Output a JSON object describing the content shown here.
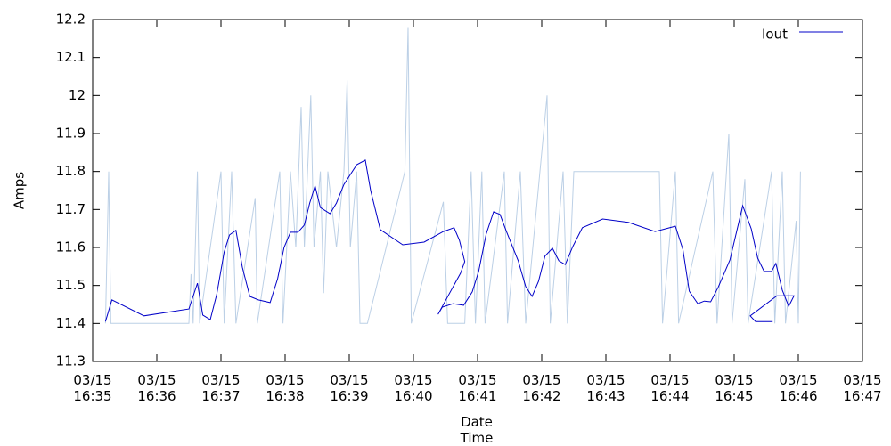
{
  "chart_data": {
    "type": "line",
    "xlabel": "Date\nTime",
    "ylabel": "Amps",
    "xlim": [
      "16:35",
      "16:47"
    ],
    "xticks": [
      {
        "value": "16:35",
        "label": "03/15\n16:35"
      },
      {
        "value": "16:36",
        "label": "03/15\n16:36"
      },
      {
        "value": "16:37",
        "label": "03/15\n16:37"
      },
      {
        "value": "16:38",
        "label": "03/15\n16:38"
      },
      {
        "value": "16:39",
        "label": "03/15\n16:39"
      },
      {
        "value": "16:40",
        "label": "03/15\n16:40"
      },
      {
        "value": "16:41",
        "label": "03/15\n16:41"
      },
      {
        "value": "16:42",
        "label": "03/15\n16:42"
      },
      {
        "value": "16:43",
        "label": "03/15\n16:43"
      },
      {
        "value": "16:44",
        "label": "03/15\n16:44"
      },
      {
        "value": "16:45",
        "label": "03/15\n16:45"
      },
      {
        "value": "16:46",
        "label": "03/15\n16:46"
      },
      {
        "value": "16:47",
        "label": "03/15\n16:47"
      }
    ],
    "ylim": [
      11.3,
      12.2
    ],
    "yticks": [
      11.3,
      11.4,
      11.5,
      11.6,
      11.7,
      11.8,
      11.9,
      12,
      12.1,
      12.2
    ],
    "grid": false,
    "legend": "top-right",
    "series": [
      {
        "color": "#bcd0e6",
        "x": [
          "16:35:12",
          "16:35:15",
          "16:35:17",
          "16:36:30",
          "16:36:32",
          "16:36:34",
          "16:36:38",
          "16:36:40",
          "16:37:00",
          "16:37:03",
          "16:37:10",
          "16:37:14",
          "16:37:32",
          "16:37:34",
          "16:37:55",
          "16:37:58",
          "16:38:05",
          "16:38:10",
          "16:38:15",
          "16:38:18",
          "16:38:24",
          "16:38:27",
          "16:38:33",
          "16:38:36",
          "16:38:40",
          "16:38:48",
          "16:38:55",
          "16:38:58",
          "16:39:01",
          "16:39:07",
          "16:39:10",
          "16:39:17",
          "16:39:52",
          "16:39:55",
          "16:39:58",
          "16:40:28",
          "16:40:32",
          "16:40:48",
          "16:40:54",
          "16:40:58",
          "16:41:04",
          "16:41:07",
          "16:41:25",
          "16:41:28",
          "16:41:40",
          "16:41:45",
          "16:42:05",
          "16:42:08",
          "16:42:20",
          "16:42:24",
          "16:42:30",
          "16:43:50",
          "16:43:53",
          "16:44:05",
          "16:44:08",
          "16:44:40",
          "16:44:44",
          "16:44:55",
          "16:44:58",
          "16:45:10",
          "16:45:13",
          "16:45:35",
          "16:45:38",
          "16:45:45",
          "16:45:48",
          "16:45:58",
          "16:46:00",
          "16:46:02"
        ],
        "values": [
          11.4,
          11.8,
          11.4,
          11.4,
          11.53,
          11.4,
          11.8,
          11.4,
          11.8,
          11.4,
          11.8,
          11.4,
          11.73,
          11.4,
          11.8,
          11.4,
          11.8,
          11.6,
          11.97,
          11.6,
          12.0,
          11.6,
          11.8,
          11.48,
          11.8,
          11.6,
          11.8,
          12.04,
          11.6,
          11.8,
          11.4,
          11.4,
          11.8,
          12.18,
          11.4,
          11.72,
          11.4,
          11.4,
          11.8,
          11.4,
          11.8,
          11.4,
          11.8,
          11.4,
          11.8,
          11.4,
          12.0,
          11.4,
          11.8,
          11.4,
          11.8,
          11.8,
          11.4,
          11.8,
          11.4,
          11.8,
          11.4,
          11.9,
          11.4,
          11.78,
          11.4,
          11.8,
          11.4,
          11.8,
          11.4,
          11.67,
          11.4,
          11.8
        ]
      },
      {
        "name": "Iout",
        "color": "#0000c8",
        "x": [
          "16:35:12",
          "16:35:18",
          "16:35:48",
          "16:36:30",
          "16:36:38",
          "16:36:43",
          "16:36:50",
          "16:36:56",
          "16:37:03",
          "16:37:08",
          "16:37:14",
          "16:37:20",
          "16:37:27",
          "16:37:35",
          "16:37:46",
          "16:37:53",
          "16:37:59",
          "16:38:05",
          "16:38:12",
          "16:38:18",
          "16:38:23",
          "16:38:28",
          "16:38:33",
          "16:38:42",
          "16:38:48",
          "16:38:55",
          "16:39:07",
          "16:39:15",
          "16:39:20",
          "16:39:29",
          "16:39:50",
          "16:40:10",
          "16:40:28",
          "16:40:38",
          "16:40:43",
          "16:40:48",
          "16:40:44",
          "16:40:23",
          "16:40:27",
          "16:40:37",
          "16:40:47",
          "16:40:55",
          "16:41:01",
          "16:41:08",
          "16:41:15",
          "16:41:21",
          "16:41:27",
          "16:41:38",
          "16:41:45",
          "16:41:51",
          "16:41:57",
          "16:42:03",
          "16:42:10",
          "16:42:16",
          "16:42:22",
          "16:42:29",
          "16:42:38",
          "16:42:57",
          "16:43:21",
          "16:43:46",
          "16:44:05",
          "16:44:12",
          "16:44:18",
          "16:44:26",
          "16:44:32",
          "16:44:38",
          "16:44:45",
          "16:44:56",
          "16:45:08",
          "16:45:16",
          "16:45:22",
          "16:45:28",
          "16:45:35",
          "16:45:39",
          "16:45:45",
          "16:45:51",
          "16:45:56",
          "16:45:40",
          "16:45:15",
          "16:45:20",
          "16:45:36"
        ],
        "values": [
          11.405,
          11.462,
          11.42,
          11.438,
          11.506,
          11.422,
          11.41,
          11.476,
          11.588,
          11.633,
          11.645,
          11.548,
          11.471,
          11.462,
          11.455,
          11.518,
          11.6,
          11.64,
          11.64,
          11.659,
          11.717,
          11.762,
          11.705,
          11.689,
          11.717,
          11.766,
          11.818,
          11.83,
          11.75,
          11.647,
          11.607,
          11.614,
          11.642,
          11.652,
          11.619,
          11.563,
          11.532,
          11.424,
          11.443,
          11.452,
          11.448,
          11.483,
          11.537,
          11.635,
          11.694,
          11.687,
          11.642,
          11.565,
          11.497,
          11.471,
          11.511,
          11.577,
          11.598,
          11.565,
          11.555,
          11.602,
          11.652,
          11.675,
          11.666,
          11.642,
          11.656,
          11.595,
          11.485,
          11.452,
          11.459,
          11.457,
          11.495,
          11.567,
          11.71,
          11.649,
          11.572,
          11.537,
          11.537,
          11.558,
          11.488,
          11.445,
          11.473,
          11.473,
          11.42,
          11.405,
          11.405
        ]
      }
    ]
  }
}
